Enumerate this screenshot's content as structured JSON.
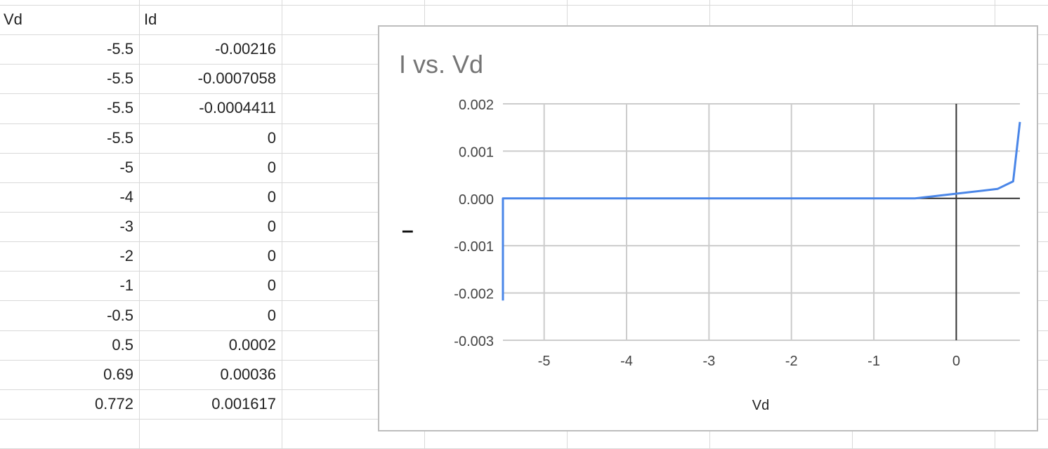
{
  "sheet": {
    "headers": [
      "Vd",
      "Id"
    ],
    "rows": [
      [
        "-5.5",
        "-0.00216"
      ],
      [
        "-5.5",
        "-0.0007058"
      ],
      [
        "-5.5",
        "-0.0004411"
      ],
      [
        "-5.5",
        "0"
      ],
      [
        "-5",
        "0"
      ],
      [
        "-4",
        "0"
      ],
      [
        "-3",
        "0"
      ],
      [
        "-2",
        "0"
      ],
      [
        "-1",
        "0"
      ],
      [
        "-0.5",
        "0"
      ],
      [
        "0.5",
        "0.0002"
      ],
      [
        "0.69",
        "0.00036"
      ],
      [
        "0.772",
        "0.001617"
      ]
    ]
  },
  "chart_data": {
    "type": "line",
    "title": "I vs. Vd",
    "xlabel": "Vd",
    "ylabel": "",
    "legend_marker": "–",
    "series": [
      {
        "color": "#4a86e8",
        "x": [
          -5.5,
          -5.5,
          -5.5,
          -5.5,
          -5,
          -4,
          -3,
          -2,
          -1,
          -0.5,
          0.5,
          0.69,
          0.772
        ],
        "y": [
          -0.00216,
          -0.0007058,
          -0.0004411,
          0,
          0,
          0,
          0,
          0,
          0,
          0,
          0.0002,
          0.00036,
          0.001617
        ]
      }
    ],
    "xlim": [
      -5.5,
      0.772
    ],
    "ylim": [
      -0.003,
      0.002
    ],
    "xticks": [
      "-5",
      "-4",
      "-3",
      "-2",
      "-1",
      "0"
    ],
    "yticks": [
      "0.002",
      "0.001",
      "0.000",
      "-0.001",
      "-0.002",
      "-0.003"
    ],
    "grid": true
  }
}
